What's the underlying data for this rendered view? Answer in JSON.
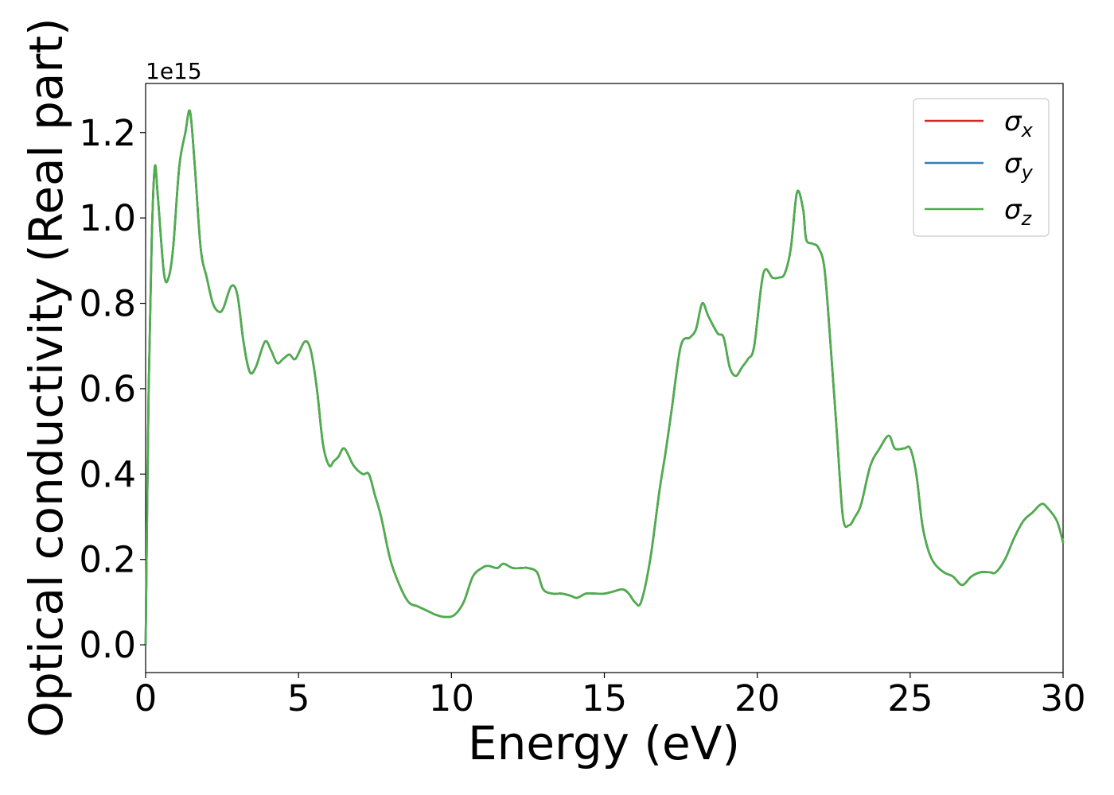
{
  "chart_data": {
    "type": "line",
    "xlabel": "Energy (eV)",
    "ylabel": "Optical conductivity (Real part)",
    "y_offset_text": "1e15",
    "xlim": [
      0,
      30
    ],
    "ylim": [
      -0.065,
      1.315
    ],
    "x_ticks": [
      0,
      5,
      10,
      15,
      20,
      25,
      30
    ],
    "y_ticks": [
      0.0,
      0.2,
      0.4,
      0.6,
      0.8,
      1.0,
      1.2
    ],
    "x_tick_labels": [
      "0",
      "5",
      "10",
      "15",
      "20",
      "25",
      "30"
    ],
    "y_tick_labels": [
      "0.0",
      "0.2",
      "0.4",
      "0.6",
      "0.8",
      "1.0",
      "1.2"
    ],
    "grid": false,
    "legend_position": "top-right",
    "x": [
      0,
      0.1,
      0.2,
      0.3,
      0.4,
      0.6,
      0.75,
      0.9,
      1.1,
      1.3,
      1.45,
      1.6,
      1.8,
      2.0,
      2.2,
      2.4,
      2.55,
      2.8,
      3.0,
      3.2,
      3.4,
      3.6,
      3.9,
      4.1,
      4.3,
      4.5,
      4.7,
      4.9,
      5.2,
      5.4,
      5.6,
      5.8,
      6.0,
      6.15,
      6.3,
      6.5,
      6.8,
      7.1,
      7.3,
      7.5,
      7.7,
      8.0,
      8.3,
      8.6,
      8.9,
      9.2,
      9.5,
      9.8,
      10.1,
      10.4,
      10.7,
      11.0,
      11.2,
      11.5,
      11.7,
      12.0,
      12.3,
      12.5,
      12.8,
      13.0,
      13.3,
      13.6,
      13.9,
      14.1,
      14.4,
      14.7,
      15.0,
      15.3,
      15.6,
      15.8,
      16.0,
      16.2,
      16.5,
      16.8,
      17.0,
      17.2,
      17.5,
      17.8,
      18.0,
      18.2,
      18.4,
      18.7,
      18.9,
      19.1,
      19.3,
      19.5,
      19.7,
      19.9,
      20.2,
      20.5,
      20.7,
      20.9,
      21.1,
      21.3,
      21.5,
      21.6,
      21.8,
      22.0,
      22.2,
      22.4,
      22.6,
      22.8,
      23.0,
      23.2,
      23.4,
      23.7,
      24.0,
      24.3,
      24.5,
      24.8,
      25.0,
      25.2,
      25.4,
      25.6,
      25.8,
      26.1,
      26.4,
      26.7,
      27.0,
      27.3,
      27.6,
      27.8,
      28.1,
      28.4,
      28.7,
      29.0,
      29.3,
      29.5,
      29.8,
      30.0
    ],
    "series": [
      {
        "name": "σx",
        "color": "#d62728",
        "values": [
          0.0,
          0.6,
          0.95,
          1.12,
          1.05,
          0.87,
          0.86,
          0.93,
          1.12,
          1.2,
          1.25,
          1.13,
          0.93,
          0.86,
          0.8,
          0.78,
          0.79,
          0.84,
          0.82,
          0.71,
          0.64,
          0.65,
          0.71,
          0.69,
          0.66,
          0.67,
          0.68,
          0.67,
          0.71,
          0.69,
          0.6,
          0.47,
          0.42,
          0.43,
          0.44,
          0.46,
          0.42,
          0.4,
          0.4,
          0.35,
          0.3,
          0.2,
          0.14,
          0.1,
          0.09,
          0.08,
          0.07,
          0.065,
          0.07,
          0.1,
          0.16,
          0.18,
          0.185,
          0.18,
          0.19,
          0.18,
          0.18,
          0.18,
          0.17,
          0.13,
          0.12,
          0.12,
          0.115,
          0.11,
          0.12,
          0.12,
          0.12,
          0.125,
          0.13,
          0.12,
          0.1,
          0.1,
          0.2,
          0.36,
          0.45,
          0.55,
          0.7,
          0.72,
          0.74,
          0.8,
          0.77,
          0.73,
          0.72,
          0.65,
          0.63,
          0.65,
          0.67,
          0.7,
          0.87,
          0.86,
          0.86,
          0.87,
          0.93,
          1.06,
          1.02,
          0.95,
          0.94,
          0.93,
          0.88,
          0.7,
          0.5,
          0.3,
          0.28,
          0.3,
          0.33,
          0.42,
          0.46,
          0.49,
          0.46,
          0.46,
          0.46,
          0.4,
          0.28,
          0.22,
          0.19,
          0.17,
          0.16,
          0.14,
          0.16,
          0.17,
          0.17,
          0.17,
          0.2,
          0.25,
          0.29,
          0.31,
          0.33,
          0.32,
          0.29,
          0.24
        ]
      },
      {
        "name": "σy",
        "color": "#377eb8",
        "values": [
          0.0,
          0.6,
          0.95,
          1.12,
          1.05,
          0.87,
          0.86,
          0.93,
          1.12,
          1.2,
          1.25,
          1.13,
          0.93,
          0.86,
          0.8,
          0.78,
          0.79,
          0.84,
          0.82,
          0.71,
          0.64,
          0.65,
          0.71,
          0.69,
          0.66,
          0.67,
          0.68,
          0.67,
          0.71,
          0.69,
          0.6,
          0.47,
          0.42,
          0.43,
          0.44,
          0.46,
          0.42,
          0.4,
          0.4,
          0.35,
          0.3,
          0.2,
          0.14,
          0.1,
          0.09,
          0.08,
          0.07,
          0.065,
          0.07,
          0.1,
          0.16,
          0.18,
          0.185,
          0.18,
          0.19,
          0.18,
          0.18,
          0.18,
          0.17,
          0.13,
          0.12,
          0.12,
          0.115,
          0.11,
          0.12,
          0.12,
          0.12,
          0.125,
          0.13,
          0.12,
          0.1,
          0.1,
          0.2,
          0.36,
          0.45,
          0.55,
          0.7,
          0.72,
          0.74,
          0.8,
          0.77,
          0.73,
          0.72,
          0.65,
          0.63,
          0.65,
          0.67,
          0.7,
          0.87,
          0.86,
          0.86,
          0.87,
          0.93,
          1.06,
          1.02,
          0.95,
          0.94,
          0.93,
          0.88,
          0.7,
          0.5,
          0.3,
          0.28,
          0.3,
          0.33,
          0.42,
          0.46,
          0.49,
          0.46,
          0.46,
          0.46,
          0.4,
          0.28,
          0.22,
          0.19,
          0.17,
          0.16,
          0.14,
          0.16,
          0.17,
          0.17,
          0.17,
          0.2,
          0.25,
          0.29,
          0.31,
          0.33,
          0.32,
          0.29,
          0.24
        ]
      },
      {
        "name": "σz",
        "color": "#4daf4a",
        "values": [
          0.0,
          0.6,
          0.95,
          1.12,
          1.05,
          0.87,
          0.86,
          0.93,
          1.12,
          1.2,
          1.25,
          1.13,
          0.93,
          0.86,
          0.8,
          0.78,
          0.79,
          0.84,
          0.82,
          0.71,
          0.64,
          0.65,
          0.71,
          0.69,
          0.66,
          0.67,
          0.68,
          0.67,
          0.71,
          0.69,
          0.6,
          0.47,
          0.42,
          0.43,
          0.44,
          0.46,
          0.42,
          0.4,
          0.4,
          0.35,
          0.3,
          0.2,
          0.14,
          0.1,
          0.09,
          0.08,
          0.07,
          0.065,
          0.07,
          0.1,
          0.16,
          0.18,
          0.185,
          0.18,
          0.19,
          0.18,
          0.18,
          0.18,
          0.17,
          0.13,
          0.12,
          0.12,
          0.115,
          0.11,
          0.12,
          0.12,
          0.12,
          0.125,
          0.13,
          0.12,
          0.1,
          0.1,
          0.2,
          0.36,
          0.45,
          0.55,
          0.7,
          0.72,
          0.74,
          0.8,
          0.77,
          0.73,
          0.72,
          0.65,
          0.63,
          0.65,
          0.67,
          0.7,
          0.87,
          0.86,
          0.86,
          0.87,
          0.93,
          1.06,
          1.02,
          0.95,
          0.94,
          0.93,
          0.88,
          0.7,
          0.5,
          0.3,
          0.28,
          0.3,
          0.33,
          0.42,
          0.46,
          0.49,
          0.46,
          0.46,
          0.46,
          0.4,
          0.28,
          0.22,
          0.19,
          0.17,
          0.16,
          0.14,
          0.16,
          0.17,
          0.17,
          0.17,
          0.2,
          0.25,
          0.29,
          0.31,
          0.33,
          0.32,
          0.29,
          0.24
        ]
      }
    ],
    "legend": [
      {
        "symbol": "σ",
        "subscript": "x"
      },
      {
        "symbol": "σ",
        "subscript": "y"
      },
      {
        "symbol": "σ",
        "subscript": "z"
      }
    ]
  }
}
